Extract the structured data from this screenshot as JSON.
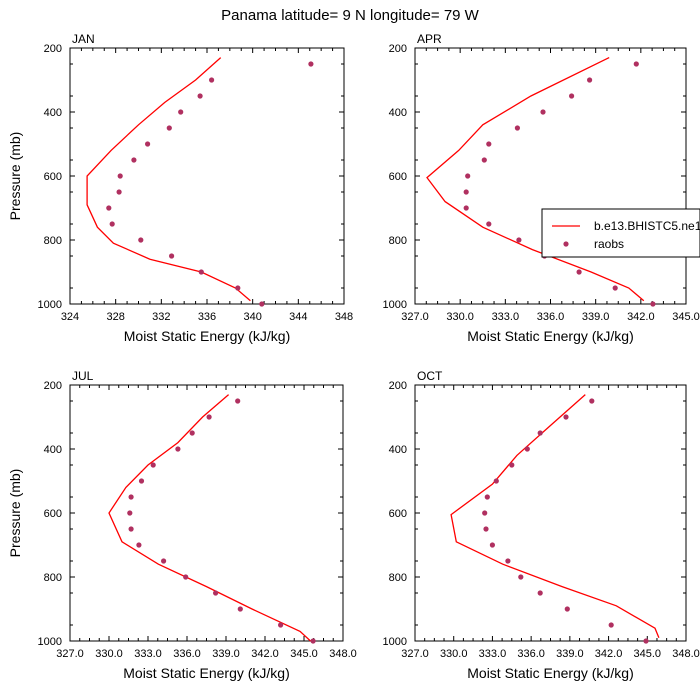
{
  "title": "Panama  latitude= 9 N longitude= 79 W",
  "colors": {
    "model": "#ff0000",
    "obs": "#b03060"
  },
  "legend": {
    "model_label": "b.e13.BHISTC5.ne1",
    "obs_label": "raobs"
  },
  "chart_data": [
    {
      "type": "line",
      "title": "JAN",
      "xlabel": "Moist Static Energy (kJ/kg)",
      "ylabel": "Pressure (mb)",
      "xlim": [
        324,
        348
      ],
      "ylim": [
        1000,
        200
      ],
      "xticks": [
        324,
        328,
        332,
        336,
        340,
        344,
        348
      ],
      "xtick_labels": [
        "324",
        "328",
        "332",
        "336",
        "340",
        "344",
        "348"
      ],
      "yticks": [
        200,
        400,
        600,
        800,
        1000
      ],
      "ytick_labels": [
        "200",
        "400",
        "600",
        "800",
        "1000"
      ],
      "series": [
        {
          "name": "b.e13.BHISTC5.ne1",
          "kind": "line",
          "x": [
            337.2,
            335.0,
            332.3,
            330.0,
            327.6,
            325.5,
            325.5,
            326.4,
            327.8,
            331.0,
            335.5,
            338.5,
            339.8
          ],
          "y": [
            230,
            300,
            370,
            440,
            520,
            600,
            690,
            760,
            810,
            860,
            900,
            950,
            990
          ]
        },
        {
          "name": "raobs",
          "kind": "scatter",
          "x": [
            345.1,
            336.4,
            335.4,
            333.7,
            332.7,
            330.8,
            329.6,
            328.4,
            328.3,
            327.4,
            327.7,
            330.2,
            332.9,
            335.5,
            338.7,
            340.8
          ],
          "y": [
            250,
            300,
            350,
            400,
            450,
            500,
            550,
            600,
            650,
            700,
            750,
            800,
            850,
            900,
            950,
            1000
          ]
        }
      ]
    },
    {
      "type": "line",
      "title": "APR",
      "xlabel": "Moist Static Energy (kJ/kg)",
      "ylabel": "",
      "xlim": [
        327,
        345
      ],
      "ylim": [
        1000,
        200
      ],
      "xticks": [
        327,
        330,
        333,
        336,
        339,
        342,
        345
      ],
      "xtick_labels": [
        "327.0",
        "330.0",
        "333.0",
        "336.0",
        "339.0",
        "342.0",
        "345.0"
      ],
      "yticks": [
        200,
        400,
        600,
        800,
        1000
      ],
      "ytick_labels": [
        "200",
        "400",
        "600",
        "800",
        "1000"
      ],
      "series": [
        {
          "name": "b.e13.BHISTC5.ne1",
          "kind": "line",
          "x": [
            339.9,
            334.7,
            331.5,
            329.9,
            327.8,
            329.0,
            331.5,
            334.8,
            338.7,
            341.2,
            342.2
          ],
          "y": [
            230,
            350,
            440,
            520,
            605,
            680,
            760,
            830,
            900,
            950,
            990
          ]
        },
        {
          "name": "raobs",
          "kind": "scatter",
          "x": [
            341.7,
            338.6,
            337.4,
            335.5,
            333.8,
            331.9,
            331.6,
            330.5,
            330.4,
            330.4,
            331.9,
            333.9,
            335.6,
            337.9,
            340.3,
            342.8
          ],
          "y": [
            250,
            300,
            350,
            400,
            450,
            500,
            550,
            600,
            650,
            700,
            750,
            800,
            850,
            900,
            950,
            1000
          ]
        }
      ]
    },
    {
      "type": "line",
      "title": "JUL",
      "xlabel": "Moist Static Energy (kJ/kg)",
      "ylabel": "Pressure (mb)",
      "xlim": [
        327,
        348
      ],
      "ylim": [
        1000,
        200
      ],
      "xticks": [
        327,
        330,
        333,
        336,
        339,
        342,
        345,
        348
      ],
      "xtick_labels": [
        "327.0",
        "330.0",
        "333.0",
        "336.0",
        "339.0",
        "342.0",
        "345.0",
        "348.0"
      ],
      "yticks": [
        200,
        400,
        600,
        800,
        1000
      ],
      "ytick_labels": [
        "200",
        "400",
        "600",
        "800",
        "1000"
      ],
      "series": [
        {
          "name": "b.e13.BHISTC5.ne1",
          "kind": "line",
          "x": [
            339.2,
            337.2,
            335.3,
            333.0,
            331.3,
            330.0,
            331.0,
            333.8,
            337.5,
            341.0,
            344.7,
            345.5
          ],
          "y": [
            230,
            300,
            380,
            450,
            520,
            600,
            690,
            760,
            830,
            900,
            970,
            1000
          ]
        },
        {
          "name": "raobs",
          "kind": "scatter",
          "x": [
            339.9,
            337.7,
            336.4,
            335.3,
            333.4,
            332.5,
            331.7,
            331.6,
            331.7,
            332.3,
            334.2,
            335.9,
            338.2,
            340.1,
            343.2,
            345.7
          ],
          "y": [
            250,
            300,
            350,
            400,
            450,
            500,
            550,
            600,
            650,
            700,
            750,
            800,
            850,
            900,
            950,
            1000
          ]
        }
      ]
    },
    {
      "type": "line",
      "title": "OCT",
      "xlabel": "Moist Static Energy (kJ/kg)",
      "ylabel": "",
      "xlim": [
        327,
        348
      ],
      "ylim": [
        1000,
        200
      ],
      "xticks": [
        327,
        330,
        333,
        336,
        339,
        342,
        345,
        348
      ],
      "xtick_labels": [
        "327.0",
        "330.0",
        "333.0",
        "336.0",
        "339.0",
        "342.0",
        "345.0",
        "348.0"
      ],
      "yticks": [
        200,
        400,
        600,
        800,
        1000
      ],
      "ytick_labels": [
        "200",
        "400",
        "600",
        "800",
        "1000"
      ],
      "series": [
        {
          "name": "b.e13.BHISTC5.ne1",
          "kind": "line",
          "x": [
            340.2,
            337.4,
            334.9,
            333.0,
            329.8,
            330.2,
            333.8,
            338.4,
            342.6,
            345.6,
            345.9
          ],
          "y": [
            230,
            330,
            420,
            510,
            605,
            690,
            760,
            830,
            890,
            960,
            990
          ]
        },
        {
          "name": "raobs",
          "kind": "scatter",
          "x": [
            340.7,
            338.7,
            336.7,
            335.7,
            334.5,
            333.3,
            332.6,
            332.4,
            332.5,
            333.0,
            334.2,
            335.2,
            336.7,
            338.8,
            342.2,
            344.9
          ],
          "y": [
            250,
            300,
            350,
            400,
            450,
            500,
            550,
            600,
            650,
            700,
            750,
            800,
            850,
            900,
            950,
            1000
          ]
        }
      ]
    }
  ]
}
